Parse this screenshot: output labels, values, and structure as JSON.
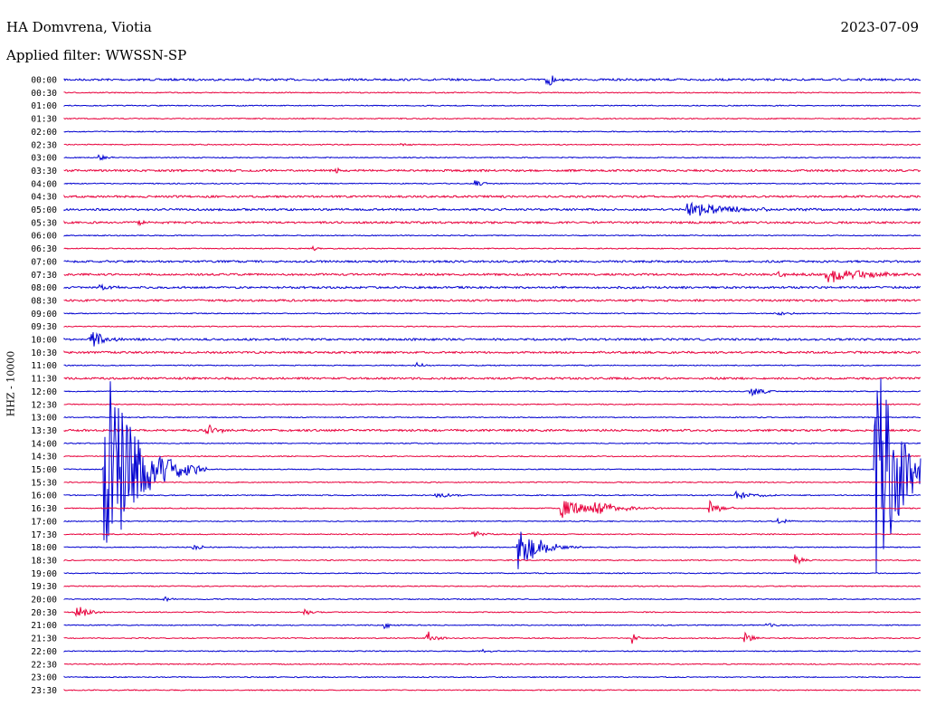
{
  "header": {
    "station": "HA Domvrena, Viotia",
    "date": "2023-07-09",
    "filter": "Applied filter: WWSSN-SP",
    "channel_label": "HHZ - 10000"
  },
  "colors": {
    "odd": "#0000d0",
    "even": "#e8003c"
  },
  "chart_data": {
    "type": "line",
    "title": "HA Domvrena, Viotia",
    "subtitle": "Applied filter: WWSSN-SP",
    "ylabel": "HHZ - 10000",
    "xlim": [
      0,
      30
    ],
    "row_labels": [
      "00:00",
      "00:30",
      "01:00",
      "01:30",
      "02:00",
      "02:30",
      "03:00",
      "03:30",
      "04:00",
      "04:30",
      "05:00",
      "05:30",
      "06:00",
      "06:30",
      "07:00",
      "07:30",
      "08:00",
      "08:30",
      "09:00",
      "09:30",
      "10:00",
      "10:30",
      "11:00",
      "11:30",
      "12:00",
      "12:30",
      "13:00",
      "13:30",
      "14:00",
      "14:30",
      "15:00",
      "15:30",
      "16:00",
      "16:30",
      "17:00",
      "17:30",
      "18:00",
      "18:30",
      "19:00",
      "19:30",
      "20:00",
      "20:30",
      "21:00",
      "21:30",
      "22:00",
      "22:30",
      "23:00",
      "23:30"
    ],
    "noise_level": [
      2,
      1,
      1,
      1,
      1,
      1,
      1,
      2,
      1,
      2,
      2,
      2,
      1,
      1,
      2,
      2,
      2,
      2,
      1,
      1,
      2,
      2,
      1,
      2,
      1,
      1,
      1,
      2,
      1,
      1,
      1,
      1,
      1,
      1,
      1,
      1,
      1,
      1,
      1,
      1,
      1,
      1,
      1,
      1,
      1,
      1,
      1,
      1
    ],
    "events": [
      {
        "row": 0,
        "minute": 16.9,
        "amp": 12,
        "dur": 0.25
      },
      {
        "row": 5,
        "minute": 11.8,
        "amp": 3,
        "dur": 0.2
      },
      {
        "row": 6,
        "minute": 1.2,
        "amp": 4,
        "dur": 0.3
      },
      {
        "row": 7,
        "minute": 9.5,
        "amp": 3,
        "dur": 0.2
      },
      {
        "row": 8,
        "minute": 14.4,
        "amp": 6,
        "dur": 0.25
      },
      {
        "row": 10,
        "minute": 21.8,
        "amp": 11,
        "dur": 1.6
      },
      {
        "row": 11,
        "minute": 2.6,
        "amp": 3,
        "dur": 0.3
      },
      {
        "row": 13,
        "minute": 8.7,
        "amp": 6,
        "dur": 0.1
      },
      {
        "row": 15,
        "minute": 25.0,
        "amp": 3,
        "dur": 0.6
      },
      {
        "row": 15,
        "minute": 26.7,
        "amp": 10,
        "dur": 1.5
      },
      {
        "row": 16,
        "minute": 1.2,
        "amp": 3,
        "dur": 0.8
      },
      {
        "row": 18,
        "minute": 25.0,
        "amp": 2,
        "dur": 0.6
      },
      {
        "row": 20,
        "minute": 0.9,
        "amp": 14,
        "dur": 0.5
      },
      {
        "row": 22,
        "minute": 12.3,
        "amp": 7,
        "dur": 0.2
      },
      {
        "row": 24,
        "minute": 24.0,
        "amp": 8,
        "dur": 0.5
      },
      {
        "row": 27,
        "minute": 5.0,
        "amp": 8,
        "dur": 0.4
      },
      {
        "row": 30,
        "minute": 1.4,
        "amp": 130,
        "dur": 1.2
      },
      {
        "row": 30,
        "minute": 28.4,
        "amp": 125,
        "dur": 1.3
      },
      {
        "row": 32,
        "minute": 13.0,
        "amp": 3,
        "dur": 0.6
      },
      {
        "row": 32,
        "minute": 23.5,
        "amp": 5,
        "dur": 0.8
      },
      {
        "row": 33,
        "minute": 17.4,
        "amp": 12,
        "dur": 0.9
      },
      {
        "row": 33,
        "minute": 18.5,
        "amp": 10,
        "dur": 1.0
      },
      {
        "row": 33,
        "minute": 22.6,
        "amp": 10,
        "dur": 0.4
      },
      {
        "row": 34,
        "minute": 25.0,
        "amp": 5,
        "dur": 0.3
      },
      {
        "row": 35,
        "minute": 14.3,
        "amp": 5,
        "dur": 0.4
      },
      {
        "row": 36,
        "minute": 15.9,
        "amp": 30,
        "dur": 0.8
      },
      {
        "row": 36,
        "minute": 4.5,
        "amp": 4,
        "dur": 0.4
      },
      {
        "row": 37,
        "minute": 25.6,
        "amp": 7,
        "dur": 0.3
      },
      {
        "row": 40,
        "minute": 3.5,
        "amp": 3,
        "dur": 0.3
      },
      {
        "row": 41,
        "minute": 0.4,
        "amp": 12,
        "dur": 0.4
      },
      {
        "row": 41,
        "minute": 8.4,
        "amp": 4,
        "dur": 0.3
      },
      {
        "row": 42,
        "minute": 11.2,
        "amp": 4,
        "dur": 0.3
      },
      {
        "row": 42,
        "minute": 24.6,
        "amp": 4,
        "dur": 0.3
      },
      {
        "row": 43,
        "minute": 12.7,
        "amp": 10,
        "dur": 0.3
      },
      {
        "row": 43,
        "minute": 19.9,
        "amp": 8,
        "dur": 0.2
      },
      {
        "row": 43,
        "minute": 23.8,
        "amp": 8,
        "dur": 0.3
      },
      {
        "row": 44,
        "minute": 14.6,
        "amp": 3,
        "dur": 0.3
      }
    ]
  }
}
